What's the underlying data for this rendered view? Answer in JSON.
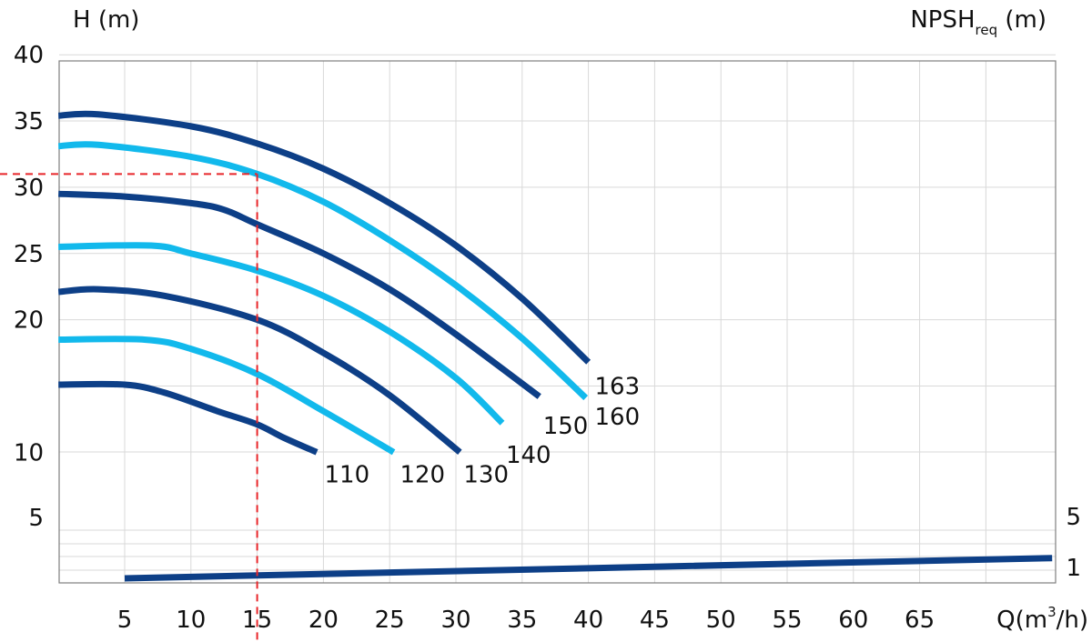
{
  "chart_data": {
    "type": "line",
    "title": "",
    "ylabel": "H (m)",
    "ylabel_right_main": "NPSH",
    "ylabel_right_sub": "req",
    "ylabel_right_unit": " (m)",
    "xlabel_main": "Q(m",
    "xlabel_sup": "3",
    "xlabel_unit": "/h)",
    "xlim": [
      0,
      75
    ],
    "ylim": [
      0,
      40
    ],
    "grid": true,
    "x_ticks": [
      5,
      10,
      15,
      20,
      25,
      30,
      35,
      40,
      45,
      50,
      55,
      60,
      65
    ],
    "y_ticks": [
      5,
      10,
      20,
      25,
      30,
      35,
      40
    ],
    "npsh_ticks": [
      {
        "label": "5",
        "value": 5
      },
      {
        "label": "1",
        "value": 1
      }
    ],
    "colors": {
      "dark": "#0d3f87",
      "light": "#12b9ec",
      "grid": "#d9d9d9",
      "marker": "#e8262a"
    },
    "series": [
      {
        "name": "110",
        "color": "dark",
        "x": [
          0,
          5,
          8,
          12,
          15,
          17,
          19.5
        ],
        "y": [
          15.1,
          15.1,
          14.5,
          13.1,
          12.1,
          11.1,
          10.0
        ]
      },
      {
        "name": "120",
        "color": "light",
        "x": [
          0,
          6.5,
          10,
          15,
          20,
          25.3
        ],
        "y": [
          18.5,
          18.5,
          17.8,
          15.9,
          13.1,
          10.0
        ]
      },
      {
        "name": "130",
        "color": "dark",
        "x": [
          0,
          3,
          8,
          15,
          20,
          25,
          30.3
        ],
        "y": [
          22.1,
          22.3,
          21.8,
          20.0,
          17.5,
          14.3,
          10.0
        ]
      },
      {
        "name": "140",
        "color": "light",
        "x": [
          0,
          7,
          10,
          15,
          20,
          25,
          30,
          33.5
        ],
        "y": [
          25.5,
          25.6,
          25.0,
          23.7,
          21.8,
          19.1,
          15.6,
          12.2
        ]
      },
      {
        "name": "150",
        "color": "dark",
        "x": [
          0,
          5,
          10,
          12.5,
          15,
          20,
          25,
          30,
          36.3
        ],
        "y": [
          29.5,
          29.3,
          28.8,
          28.3,
          27.2,
          25.0,
          22.3,
          18.9,
          14.2
        ]
      },
      {
        "name": "160",
        "color": "light",
        "x": [
          0,
          3,
          10,
          15,
          20,
          25,
          30,
          35,
          39.8
        ],
        "y": [
          33.1,
          33.2,
          32.3,
          31.0,
          28.9,
          26.0,
          22.6,
          18.6,
          14.1
        ]
      },
      {
        "name": "163",
        "color": "dark",
        "x": [
          0,
          3,
          10,
          15,
          20,
          25,
          30,
          35,
          40
        ],
        "y": [
          35.4,
          35.5,
          34.6,
          33.3,
          31.4,
          28.8,
          25.6,
          21.6,
          16.8
        ]
      },
      {
        "name": "NPSHreq",
        "color": "dark",
        "x": [
          5,
          75
        ],
        "y": [
          0.35,
          1.9
        ]
      }
    ],
    "curve_labels": [
      {
        "text": "110",
        "x": 19.8,
        "y": 8.3
      },
      {
        "text": "120",
        "x": 25.5,
        "y": 8.3
      },
      {
        "text": "130",
        "x": 30.3,
        "y": 8.3
      },
      {
        "text": "140",
        "x": 33.5,
        "y": 9.8
      },
      {
        "text": "150",
        "x": 36.3,
        "y": 12.0
      },
      {
        "text": "160",
        "x": 40.2,
        "y": 12.7
      },
      {
        "text": "163",
        "x": 40.2,
        "y": 15.0
      }
    ],
    "operating_point": {
      "x": 15,
      "y": 31.0
    }
  }
}
